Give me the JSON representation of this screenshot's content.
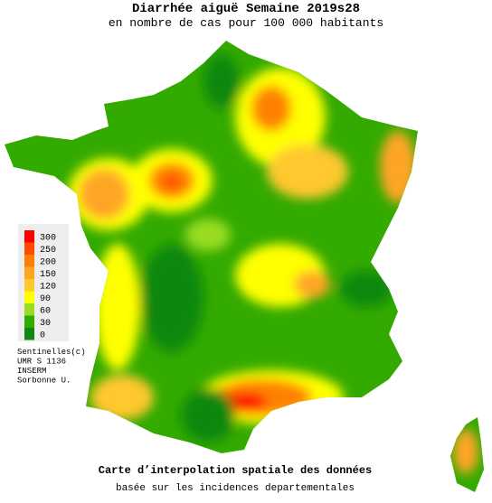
{
  "title": "Diarrhée aiguë Semaine 2019s28",
  "subtitle": "en nombre de cas pour 100 000 habitants",
  "legend": {
    "items": [
      {
        "value": 300,
        "color": "#ff0000"
      },
      {
        "value": 250,
        "color": "#ff4a00"
      },
      {
        "value": 200,
        "color": "#ff8000"
      },
      {
        "value": 150,
        "color": "#ffa526"
      },
      {
        "value": 120,
        "color": "#ffc82e"
      },
      {
        "value": 90,
        "color": "#ffff00"
      },
      {
        "value": 60,
        "color": "#99dd22"
      },
      {
        "value": 30,
        "color": "#33aa00"
      },
      {
        "value": 0,
        "color": "#118811"
      }
    ]
  },
  "credits": [
    "Sentinelles(c)",
    "UMR S 1136",
    "INSERM",
    "Sorbonne U."
  ],
  "footer": {
    "title": "Carte d’interpolation spatiale des données",
    "subtitle": "basée sur les incidences departementales"
  }
}
